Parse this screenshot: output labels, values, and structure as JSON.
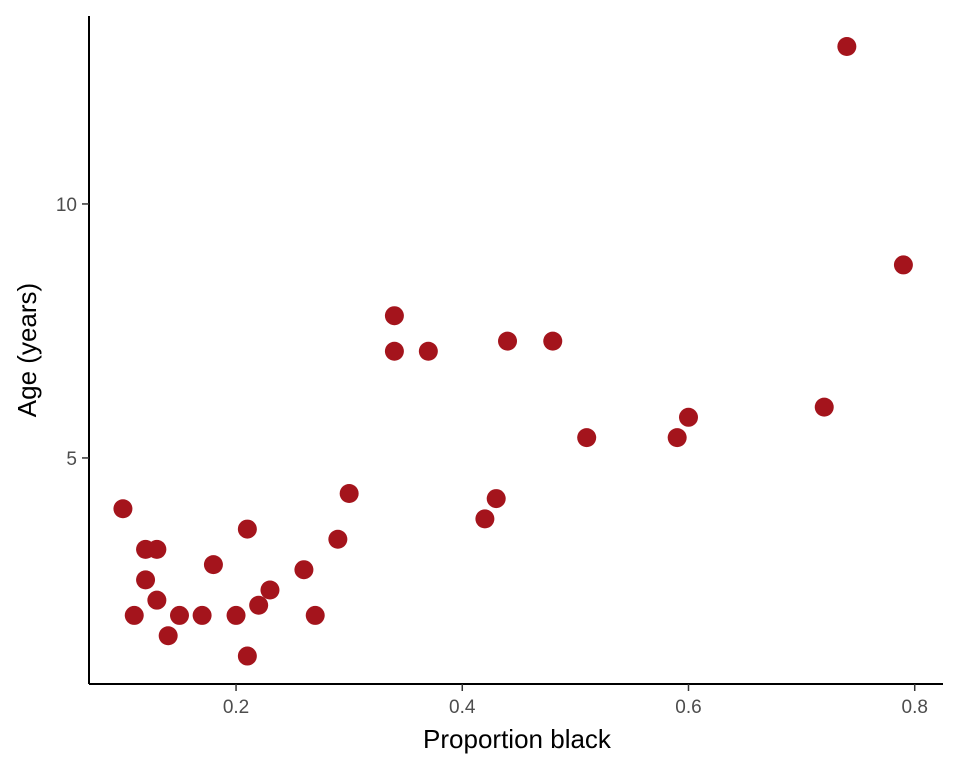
{
  "chart_data": {
    "type": "scatter",
    "xlabel": "Proportion black",
    "ylabel": "Age (years)",
    "xlim": [
      0.07,
      0.825
    ],
    "ylim": [
      0.55,
      13.7
    ],
    "x_ticks": [
      0.2,
      0.4,
      0.6,
      0.8
    ],
    "x_tick_labels": [
      "0.2",
      "0.4",
      "0.6",
      "0.8"
    ],
    "y_ticks": [
      5,
      10
    ],
    "y_tick_labels": [
      "5",
      "10"
    ],
    "grid": false,
    "legend": "none",
    "point_color": "#a4141c",
    "points": [
      {
        "x": 0.1,
        "y": 4.0
      },
      {
        "x": 0.11,
        "y": 1.9
      },
      {
        "x": 0.12,
        "y": 3.2
      },
      {
        "x": 0.12,
        "y": 2.6
      },
      {
        "x": 0.13,
        "y": 3.2
      },
      {
        "x": 0.13,
        "y": 2.2
      },
      {
        "x": 0.14,
        "y": 1.5
      },
      {
        "x": 0.15,
        "y": 1.9
      },
      {
        "x": 0.17,
        "y": 1.9
      },
      {
        "x": 0.18,
        "y": 2.9
      },
      {
        "x": 0.2,
        "y": 1.9
      },
      {
        "x": 0.21,
        "y": 3.6
      },
      {
        "x": 0.21,
        "y": 1.1
      },
      {
        "x": 0.22,
        "y": 2.1
      },
      {
        "x": 0.23,
        "y": 2.4
      },
      {
        "x": 0.26,
        "y": 2.8
      },
      {
        "x": 0.27,
        "y": 1.9
      },
      {
        "x": 0.29,
        "y": 3.4
      },
      {
        "x": 0.3,
        "y": 4.3
      },
      {
        "x": 0.34,
        "y": 7.8
      },
      {
        "x": 0.34,
        "y": 7.1
      },
      {
        "x": 0.37,
        "y": 7.1
      },
      {
        "x": 0.42,
        "y": 3.8
      },
      {
        "x": 0.43,
        "y": 4.2
      },
      {
        "x": 0.44,
        "y": 7.3
      },
      {
        "x": 0.48,
        "y": 7.3
      },
      {
        "x": 0.51,
        "y": 5.4
      },
      {
        "x": 0.59,
        "y": 5.4
      },
      {
        "x": 0.6,
        "y": 5.8
      },
      {
        "x": 0.72,
        "y": 6.0
      },
      {
        "x": 0.74,
        "y": 13.1
      },
      {
        "x": 0.79,
        "y": 8.8
      }
    ]
  }
}
